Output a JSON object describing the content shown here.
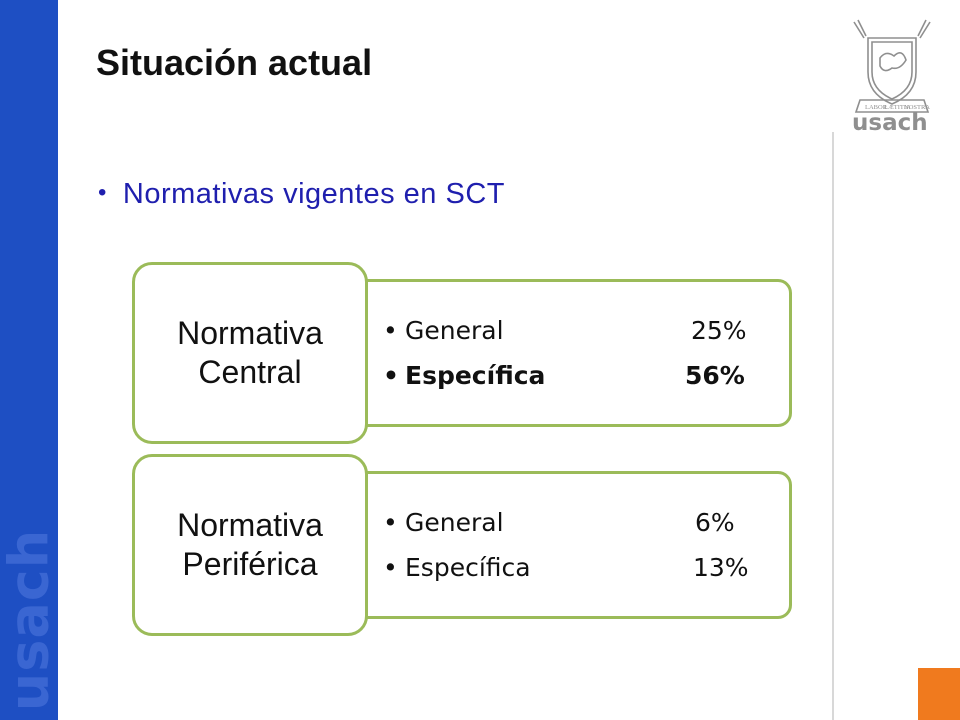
{
  "slide": {
    "title": "Situación actual",
    "bullet": "Normativas vigentes en SCT"
  },
  "branding": {
    "sidebar_text": "usach",
    "logo_text": "usach",
    "logo_motto": [
      "LABOR",
      "LÆTITIA",
      "NOSTRA"
    ],
    "sidebar_color": "#1e4fc3",
    "accent_color": "#f07a1e",
    "box_border_color": "#9bbb59"
  },
  "groups": [
    {
      "label_line1": "Normativa",
      "label_line2": "Central",
      "items": [
        {
          "label": "General",
          "value": "25%"
        },
        {
          "label": "Específica",
          "value": "56%"
        }
      ]
    },
    {
      "label_line1": "Normativa",
      "label_line2": "Periférica",
      "items": [
        {
          "label": "General",
          "value": "6%"
        },
        {
          "label": "Específica",
          "value": "13%"
        }
      ]
    }
  ]
}
